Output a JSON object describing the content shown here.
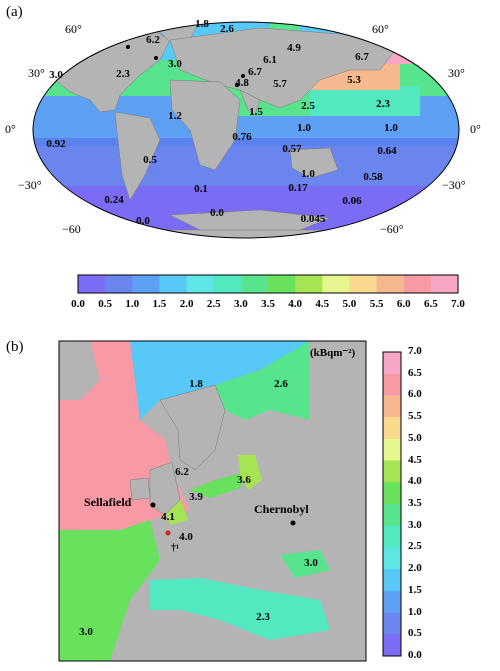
{
  "panel_a": {
    "label": "(a)",
    "lat_labels": {
      "left": [
        "60°",
        "30°",
        "0°",
        "−30°",
        "−60"
      ],
      "right": [
        "60°",
        "30°",
        "0°",
        "−30°",
        "−60°"
      ]
    },
    "values": [
      "1.8",
      "2.6",
      "6.2",
      "3.0",
      "2.3",
      "3.0",
      "4.9",
      "6.7",
      "6.1",
      "6.7",
      "4.8",
      "5.7",
      "5.3",
      "1.2",
      "1.5",
      "2.5",
      "2.3",
      "0.92",
      "0.76",
      "1.0",
      "1.0",
      "0.5",
      "0.57",
      "0.64",
      "0.1",
      "1.0",
      "0.58",
      "0.24",
      "0.17",
      "0.06",
      "0.0",
      "0.0",
      "0.045"
    ]
  },
  "colorbar_h": {
    "ticks": [
      "0.0",
      "0.5",
      "1.0",
      "1.5",
      "2.0",
      "2.5",
      "3.0",
      "3.5",
      "4.0",
      "4.5",
      "5.0",
      "5.5",
      "6.0",
      "6.5",
      "7.0"
    ],
    "colors": [
      "#7b6cf5",
      "#6a86ee",
      "#5ea0f4",
      "#58c8f6",
      "#5ee6e6",
      "#52e8c0",
      "#57e48c",
      "#68e25c",
      "#a6e454",
      "#e6f58e",
      "#f8d98e",
      "#f6b98e",
      "#f79aa6",
      "#f8a6c6"
    ]
  },
  "panel_b": {
    "label": "(b)",
    "unit": "(kBqm⁻²)",
    "places": {
      "sellafield": "Sellafield",
      "chernobyl": "Chernobyl",
      "dagger": "†¹"
    },
    "values": [
      "1.8",
      "2.6",
      "6.2",
      "3.9",
      "3.6",
      "4.1",
      "4.0",
      "3.0",
      "2.3",
      "3.0"
    ]
  },
  "colorbar_v": {
    "ticks": [
      "7.0",
      "6.5",
      "6.0",
      "5.5",
      "5.0",
      "4.5",
      "4.0",
      "3.5",
      "3.0",
      "2.5",
      "2.0",
      "1.5",
      "1.0",
      "0.5",
      "0.0"
    ]
  }
}
